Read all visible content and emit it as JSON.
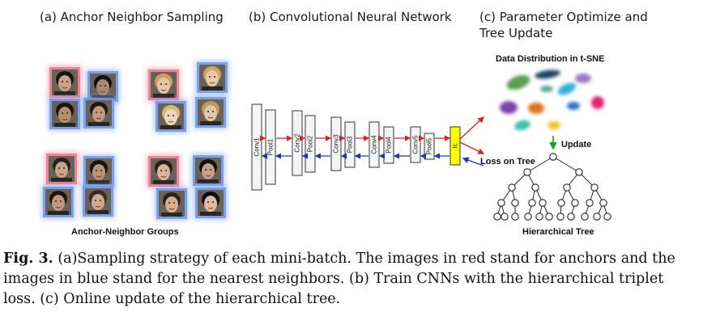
{
  "panels": {
    "a": "(a) Anchor Neighbor Sampling",
    "b": "(b) Convolutional Neural Network",
    "c_line1": "(c) Parameter Optimize and",
    "c_line2": "Tree Update"
  },
  "labels": {
    "data_distribution": "Data Distribution in t-SNE",
    "anchor_groups": "Anchor-Neighbor Groups",
    "update": "Update",
    "loss_on_tree": "Loss on Tree",
    "hierarchical_tree": "Hierarchical Tree"
  },
  "layers": [
    "Conv1",
    "Pool1",
    "Conv2",
    "Pool2",
    "Conv3",
    "Pool3",
    "Conv4",
    "Pool4",
    "Conv5",
    "Pool5",
    "fc"
  ],
  "caption": {
    "fig_label": "Fig. 3.",
    "text": " (a)Sampling strategy of each mini-batch. The images in red stand for anchors and the images in blue stand for the nearest neighbors. (b) Train CNNs with the hierarchical triplet loss. (c) Online update of the hierarchical tree."
  },
  "colors": {
    "anchor": "#eb788c",
    "neighbor": "#6e96eb",
    "forward_arrow": "#e02020",
    "backward_arrow": "#2030d0",
    "update_arrow": "#20a020",
    "fc_fill": "#ffff00"
  }
}
